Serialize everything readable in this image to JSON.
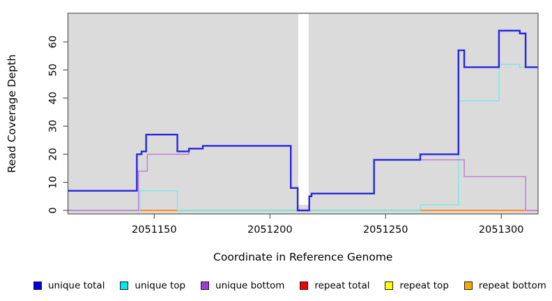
{
  "chart_data": {
    "type": "step-line",
    "title": "",
    "xlabel": "Coordinate in Reference Genome",
    "ylabel": "Read Coverage Depth",
    "xlim": [
      2051112.7,
      2051315.9
    ],
    "ylim": [
      -1.24,
      70.2
    ],
    "grid": false,
    "plot_background": "#DBDBDB",
    "x_ticks": [
      {
        "value": 2051150,
        "label": "2051150"
      },
      {
        "value": 2051200,
        "label": "2051200"
      },
      {
        "value": 2051250,
        "label": "2051250"
      },
      {
        "value": 2051300,
        "label": "2051300"
      }
    ],
    "y_ticks": [
      {
        "value": 0,
        "label": "0"
      },
      {
        "value": 10,
        "label": "10"
      },
      {
        "value": 20,
        "label": "20"
      },
      {
        "value": 30,
        "label": "30"
      },
      {
        "value": 40,
        "label": "40"
      },
      {
        "value": 50,
        "label": "50"
      },
      {
        "value": 60,
        "label": "60"
      }
    ],
    "mask_region": {
      "from": 2051212.3,
      "to": 2051216.7,
      "color": "#ffffff"
    },
    "series": [
      {
        "name": "unique total",
        "color": "#2726DC",
        "width": 2.4,
        "steps": [
          [
            2051112.7,
            7
          ],
          [
            2051142.5,
            20
          ],
          [
            2051144.5,
            21
          ],
          [
            2051146.5,
            27
          ],
          [
            2051160,
            21
          ],
          [
            2051165,
            22
          ],
          [
            2051171,
            23
          ],
          [
            2051209,
            8
          ],
          [
            2051212,
            0
          ],
          [
            2051217,
            5
          ],
          [
            2051218,
            6
          ],
          [
            2051245,
            18
          ],
          [
            2051265,
            20
          ],
          [
            2051281.5,
            57
          ],
          [
            2051284,
            51
          ],
          [
            2051299,
            64
          ],
          [
            2051308,
            63
          ],
          [
            2051310.5,
            51
          ]
        ]
      },
      {
        "name": "unique top",
        "color": "#79E8E8",
        "width": 1.4,
        "steps": [
          [
            2051112.7,
            0
          ],
          [
            2051143.8,
            7
          ],
          [
            2051160,
            0
          ],
          [
            2051265,
            2
          ],
          [
            2051281.5,
            39
          ],
          [
            2051299,
            52
          ],
          [
            2051308,
            51
          ]
        ]
      },
      {
        "name": "unique bottom",
        "color": "#B87CD8",
        "width": 1.4,
        "steps": [
          [
            2051112.7,
            0
          ],
          [
            2051143.2,
            14
          ],
          [
            2051147,
            20
          ],
          [
            2051165,
            22
          ],
          [
            2051171,
            23
          ],
          [
            2051209,
            8
          ],
          [
            2051212,
            0
          ],
          [
            2051217,
            5
          ],
          [
            2051218,
            6
          ],
          [
            2051245,
            18
          ],
          [
            2051284,
            12
          ],
          [
            2051310.5,
            0
          ]
        ]
      },
      {
        "name": "repeat total",
        "color": "#E02020",
        "width": 1.4,
        "steps": [
          [
            2051112.7,
            0
          ]
        ]
      },
      {
        "name": "repeat top",
        "color": "#FFEE00",
        "width": 1.4,
        "steps": [
          [
            2051112.7,
            0
          ]
        ]
      },
      {
        "name": "repeat bottom",
        "color": "#FF8C1A",
        "width": 1.4,
        "steps": [
          [
            2051112.7,
            0
          ]
        ]
      }
    ],
    "baseline_overlap_segments": [
      {
        "from": 2051112.7,
        "to": 2051143,
        "color": "#E87EB3"
      },
      {
        "from": 2051143,
        "to": 2051160,
        "color": "#FF8C1A"
      },
      {
        "from": 2051160,
        "to": 2051265,
        "color": "#8FCB8F"
      },
      {
        "from": 2051265,
        "to": 2051310.5,
        "color": "#FF8C1A"
      },
      {
        "from": 2051310.5,
        "to": 2051315.9,
        "color": "#F09EC8"
      }
    ]
  },
  "ui": {
    "legend": {
      "items": [
        {
          "label": "unique total",
          "color": "#0000E0"
        },
        {
          "label": "unique top",
          "color": "#00E8F0"
        },
        {
          "label": "unique bottom",
          "color": "#A23BD6"
        },
        {
          "label": "repeat total",
          "color": "#EE0000"
        },
        {
          "label": "repeat top",
          "color": "#FFFF00"
        },
        {
          "label": "repeat bottom",
          "color": "#FFA500"
        }
      ]
    }
  }
}
